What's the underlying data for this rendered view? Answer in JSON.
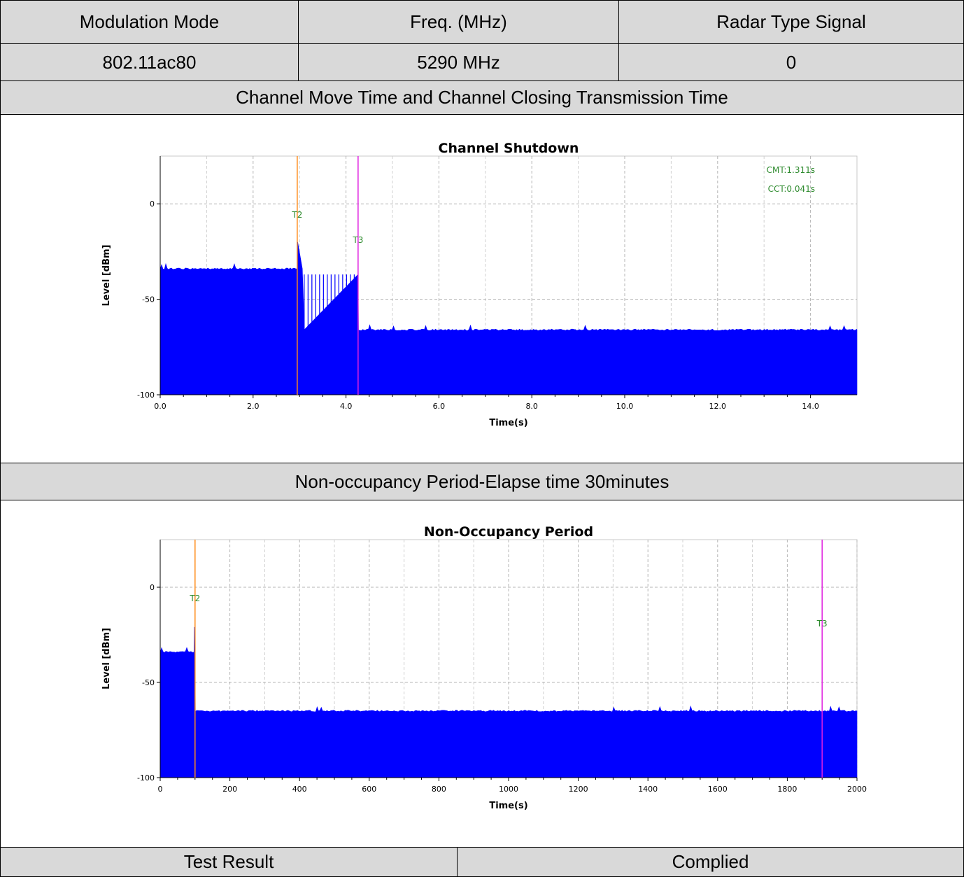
{
  "header": {
    "col1": "Modulation Mode",
    "col2": "Freq. (MHz)",
    "col3": "Radar Type Signal"
  },
  "row": {
    "mode": "802.11ac80",
    "freq": "5290 MHz",
    "radar": "0"
  },
  "section1_title": "Channel Move Time and Channel Closing Transmission Time",
  "section2_title": "Non-occupancy Period-Elapse time 30minutes",
  "result": {
    "label": "Test Result",
    "value": "Complied"
  },
  "colors": {
    "header_bg": "#d9d9d9",
    "trace": "#0000ff",
    "t2_marker": "#ff8c1a",
    "t3_marker": "#e020e0",
    "annotation": "#2e8b2e"
  },
  "chart_data": [
    {
      "type": "area",
      "title": "Channel Shutdown",
      "xlabel": "Time(s)",
      "ylabel": "Level [dBm]",
      "xlim": [
        0,
        15
      ],
      "ylim": [
        -100,
        25
      ],
      "xticks": [
        0,
        2,
        4,
        6,
        8,
        10,
        12,
        14
      ],
      "xtick_labels": [
        "0.0",
        "2.0",
        "4.0",
        "6.0",
        "8.0",
        "10.0",
        "12.0",
        "14.0"
      ],
      "yticks": [
        0,
        -50,
        -100
      ],
      "ytick_labels": [
        "0",
        "-50",
        "-100"
      ],
      "grid": true,
      "annotations": [
        "CMT:1.311s",
        "CCT:0.041s"
      ],
      "markers": [
        {
          "label": "T2",
          "x": 2.95,
          "color": "#ff8c1a"
        },
        {
          "label": "T3",
          "x": 4.26,
          "color": "#e020e0"
        }
      ],
      "series": [
        {
          "x": [
            0,
            2.95,
            2.96,
            3.06,
            3.1,
            4.26,
            4.27,
            15
          ],
          "y": [
            -34,
            -34,
            -20,
            -34,
            -66,
            -37,
            -66,
            -66
          ]
        }
      ]
    },
    {
      "type": "area",
      "title": "Non-Occupancy Period",
      "xlabel": "Time(s)",
      "ylabel": "Level [dBm]",
      "xlim": [
        0,
        2000
      ],
      "ylim": [
        -100,
        25
      ],
      "xticks": [
        0,
        200,
        400,
        600,
        800,
        1000,
        1200,
        1400,
        1600,
        1800,
        2000
      ],
      "xtick_labels": [
        "0",
        "200",
        "400",
        "600",
        "800",
        "1000",
        "1200",
        "1400",
        "1600",
        "1800",
        "2000"
      ],
      "yticks": [
        0,
        -50,
        -100
      ],
      "ytick_labels": [
        "0",
        "-50",
        "-100"
      ],
      "grid": true,
      "markers": [
        {
          "label": "T2",
          "x": 100,
          "color": "#ff8c1a"
        },
        {
          "label": "T3",
          "x": 1900,
          "color": "#e020e0"
        }
      ],
      "series": [
        {
          "x": [
            0,
            97,
            98,
            100,
            101,
            2000
          ],
          "y": [
            -34,
            -34,
            -21,
            -21,
            -65,
            -65
          ]
        }
      ]
    }
  ]
}
